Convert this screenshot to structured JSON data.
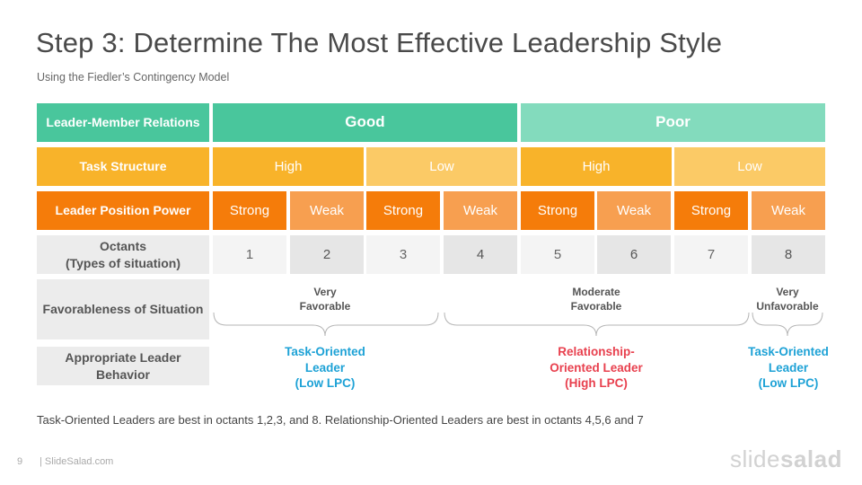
{
  "header": {
    "title": "Step 3: Determine The Most Effective Leadership Style",
    "subtitle": "Using the Fiedler’s Contingency  Model"
  },
  "table": {
    "row_labels": {
      "relations": "Leader-Member Relations",
      "structure": "Task Structure",
      "power": "Leader Position Power",
      "octants_line1": "Octants",
      "octants_line2": "(Types of situation)",
      "favorableness": "Favorableness of Situation",
      "behavior_line1": "Appropriate Leader",
      "behavior_line2": "Behavior"
    },
    "relations": [
      "Good",
      "Poor"
    ],
    "structure": [
      "High",
      "Low",
      "High",
      "Low"
    ],
    "power": [
      "Strong",
      "Weak",
      "Strong",
      "Weak",
      "Strong",
      "Weak",
      "Strong",
      "Weak"
    ],
    "octants": [
      "1",
      "2",
      "3",
      "4",
      "5",
      "6",
      "7",
      "8"
    ]
  },
  "favorableness": {
    "very_favorable": [
      "Very",
      "Favorable"
    ],
    "moderate": [
      "Moderate",
      "Favorable"
    ],
    "very_unfavorable": [
      "Very",
      "Unfavorable"
    ]
  },
  "behavior": {
    "task_left": [
      "Task-Oriented",
      "Leader",
      "(Low LPC)"
    ],
    "relationship": [
      "Relationship-",
      "Oriented Leader",
      "(High LPC)"
    ],
    "task_right": [
      "Task-Oriented",
      "Leader",
      "(Low LPC)"
    ]
  },
  "footnote": "Task-Oriented Leaders are best in octants 1,2,3, and 8. Relationship-Oriented Leaders are best in octants 4,5,6 and 7",
  "footer": {
    "page": "9",
    "site": "| SlideSalad.com",
    "logo_light": "slide",
    "logo_bold": "salad"
  },
  "colors": {
    "task_oriented": "#1ea2d6",
    "relationship_oriented": "#e8404e"
  }
}
